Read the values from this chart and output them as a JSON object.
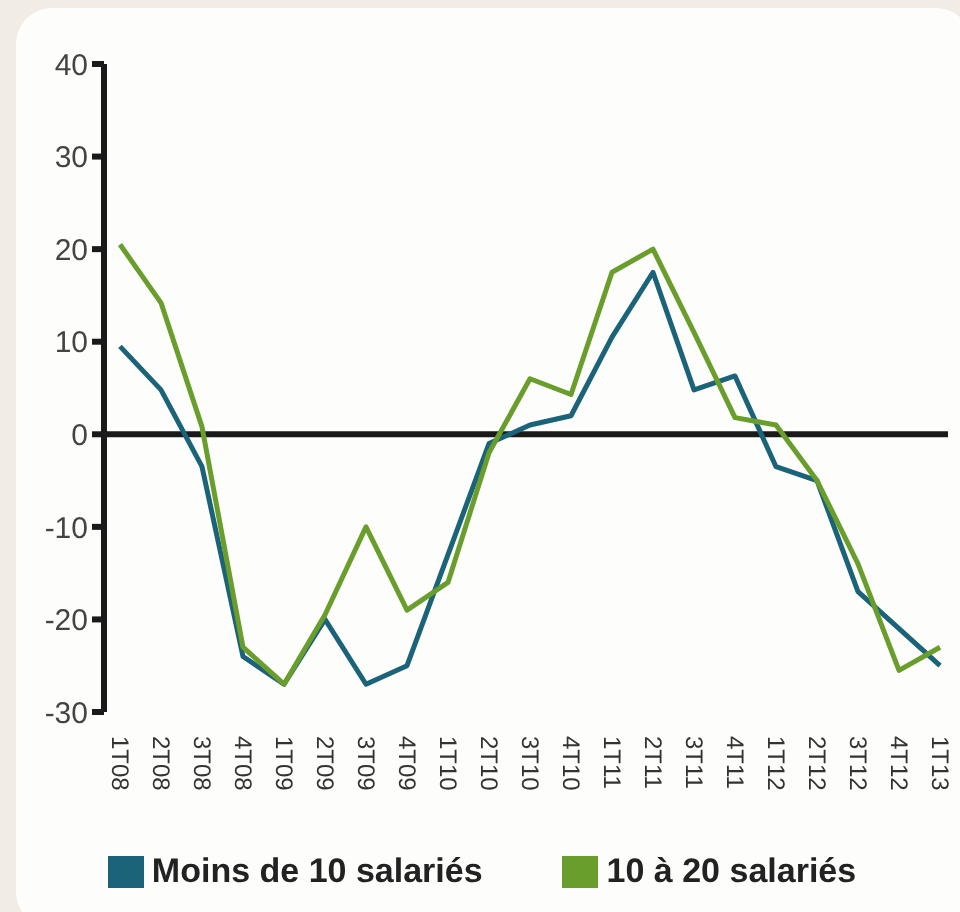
{
  "chart_data": {
    "type": "line",
    "categories": [
      "1T08",
      "2T08",
      "3T08",
      "4T08",
      "1T09",
      "2T09",
      "3T09",
      "4T09",
      "1T10",
      "2T10",
      "3T10",
      "4T10",
      "1T11",
      "2T11",
      "3T11",
      "4T11",
      "1T12",
      "2T12",
      "3T12",
      "4T12",
      "1T13"
    ],
    "series": [
      {
        "name": "Moins de 10 salariés",
        "color": "#1b6378",
        "values": [
          9.5,
          4.8,
          -3.5,
          -24,
          -27,
          -20,
          -27,
          -25,
          -13,
          -1,
          1,
          2,
          10.5,
          17.5,
          4.8,
          6.3,
          -3.5,
          -5,
          -17,
          -21,
          -25
        ]
      },
      {
        "name": "10 à 20 salariés",
        "color": "#6a9e2c",
        "values": [
          20.5,
          14.2,
          0.8,
          -23,
          -27,
          -19.5,
          -10,
          -19,
          -16,
          -2,
          6,
          4.3,
          17.5,
          20,
          11,
          1.8,
          1,
          -5,
          -14,
          -25.5,
          -23
        ]
      }
    ],
    "ylim": [
      -30,
      40
    ],
    "yticks": [
      -30,
      -20,
      -10,
      0,
      10,
      20,
      30,
      40
    ],
    "legend": "bottom",
    "marker": "none",
    "line_style": "solid"
  }
}
